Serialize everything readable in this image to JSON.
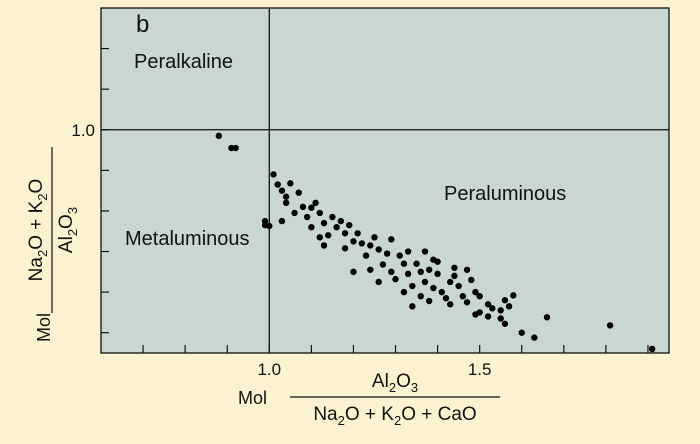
{
  "chart_data": {
    "type": "scatter",
    "panel_label": "b",
    "xlim": [
      0.6,
      1.95
    ],
    "ylim": [
      0.45,
      1.3
    ],
    "x_ticks": [
      0.7,
      0.8,
      0.9,
      1.0,
      1.1,
      1.2,
      1.3,
      1.4,
      1.5,
      1.6,
      1.7,
      1.8,
      1.9
    ],
    "x_tick_labels": [
      {
        "value": 1.0,
        "text": "1.0"
      },
      {
        "value": 1.5,
        "text": "1.5"
      }
    ],
    "y_ticks": [
      0.5,
      0.6,
      0.7,
      0.8,
      0.9,
      1.0,
      1.1,
      1.2
    ],
    "y_tick_labels": [
      {
        "value": 1.0,
        "text": "1.0"
      }
    ],
    "reference_lines": {
      "x": 1.0,
      "y": 1.0
    },
    "xlabel": {
      "prefix": "Mol",
      "numerator": "Al2O3",
      "denominator": "Na2O + K2O + CaO"
    },
    "ylabel": {
      "prefix": "Mol",
      "numerator": "Na2O + K2O",
      "denominator": "Al2O3"
    },
    "regions": [
      "Peralkaline",
      "Peraluminous",
      "Metaluminous"
    ],
    "colors": {
      "background": "#fbf3cf",
      "plot_area": "#c8d8d0",
      "points": "#000000"
    },
    "points": [
      [
        0.88,
        0.985
      ],
      [
        0.91,
        0.955
      ],
      [
        0.92,
        0.955
      ],
      [
        0.99,
        0.775
      ],
      [
        0.99,
        0.765
      ],
      [
        1.0,
        0.763
      ],
      [
        1.01,
        0.89
      ],
      [
        1.02,
        0.865
      ],
      [
        1.03,
        0.85
      ],
      [
        1.04,
        0.835
      ],
      [
        1.05,
        0.868
      ],
      [
        1.04,
        0.82
      ],
      [
        1.03,
        0.775
      ],
      [
        1.07,
        0.845
      ],
      [
        1.08,
        0.81
      ],
      [
        1.06,
        0.795
      ],
      [
        1.09,
        0.785
      ],
      [
        1.1,
        0.808
      ],
      [
        1.11,
        0.82
      ],
      [
        1.12,
        0.795
      ],
      [
        1.1,
        0.76
      ],
      [
        1.13,
        0.77
      ],
      [
        1.15,
        0.785
      ],
      [
        1.12,
        0.735
      ],
      [
        1.14,
        0.74
      ],
      [
        1.16,
        0.76
      ],
      [
        1.18,
        0.745
      ],
      [
        1.17,
        0.775
      ],
      [
        1.19,
        0.765
      ],
      [
        1.2,
        0.725
      ],
      [
        1.13,
        0.715
      ],
      [
        1.21,
        0.745
      ],
      [
        1.18,
        0.708
      ],
      [
        1.22,
        0.72
      ],
      [
        1.24,
        0.715
      ],
      [
        1.25,
        0.735
      ],
      [
        1.23,
        0.69
      ],
      [
        1.26,
        0.705
      ],
      [
        1.28,
        0.695
      ],
      [
        1.27,
        0.668
      ],
      [
        1.24,
        0.655
      ],
      [
        1.2,
        0.65
      ],
      [
        1.29,
        0.65
      ],
      [
        1.31,
        0.69
      ],
      [
        1.32,
        0.67
      ],
      [
        1.3,
        0.632
      ],
      [
        1.26,
        0.625
      ],
      [
        1.33,
        0.645
      ],
      [
        1.35,
        0.67
      ],
      [
        1.36,
        0.65
      ],
      [
        1.34,
        0.615
      ],
      [
        1.32,
        0.6
      ],
      [
        1.37,
        0.625
      ],
      [
        1.38,
        0.655
      ],
      [
        1.4,
        0.645
      ],
      [
        1.39,
        0.61
      ],
      [
        1.36,
        0.59
      ],
      [
        1.41,
        0.6
      ],
      [
        1.43,
        0.625
      ],
      [
        1.44,
        0.64
      ],
      [
        1.42,
        0.585
      ],
      [
        1.45,
        0.615
      ],
      [
        1.47,
        0.655
      ],
      [
        1.48,
        0.63
      ],
      [
        1.46,
        0.59
      ],
      [
        1.49,
        0.6
      ],
      [
        1.38,
        0.578
      ],
      [
        1.43,
        0.57
      ],
      [
        1.5,
        0.59
      ],
      [
        1.34,
        0.565
      ],
      [
        1.47,
        0.575
      ],
      [
        1.52,
        0.57
      ],
      [
        1.39,
        0.68
      ],
      [
        1.33,
        0.7
      ],
      [
        1.29,
        0.73
      ],
      [
        1.44,
        0.66
      ],
      [
        1.37,
        0.7
      ],
      [
        1.4,
        0.675
      ],
      [
        1.5,
        0.55
      ],
      [
        1.53,
        0.56
      ],
      [
        1.55,
        0.555
      ],
      [
        1.56,
        0.58
      ],
      [
        1.58,
        0.592
      ],
      [
        1.57,
        0.565
      ],
      [
        1.56,
        0.522
      ],
      [
        1.52,
        0.54
      ],
      [
        1.49,
        0.545
      ],
      [
        1.6,
        0.5
      ],
      [
        1.55,
        0.535
      ],
      [
        1.63,
        0.488
      ],
      [
        1.66,
        0.538
      ],
      [
        1.81,
        0.518
      ],
      [
        1.91,
        0.46
      ]
    ]
  }
}
